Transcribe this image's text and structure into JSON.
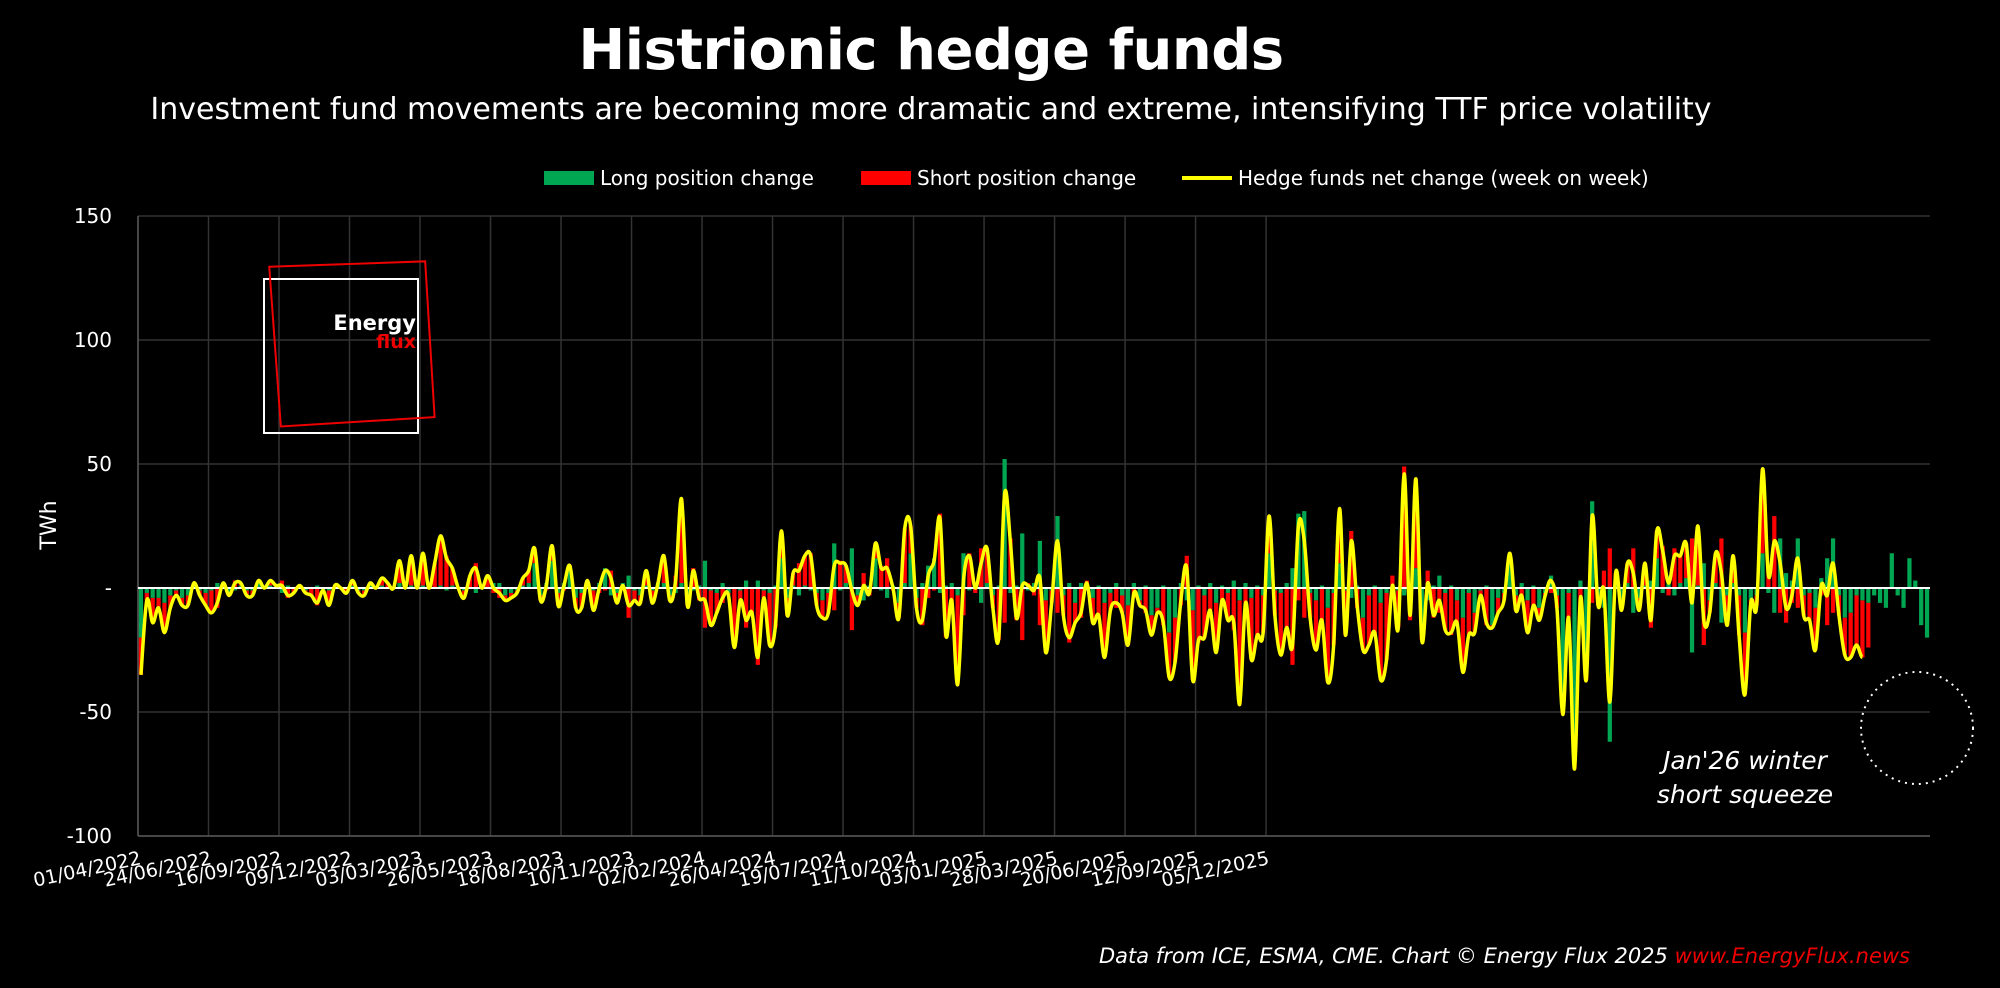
{
  "title": "Histrionic hedge funds",
  "subtitle": "Investment fund movements are becoming more dramatic and extreme, intensifying TTF price volatility",
  "footer": {
    "source": "Data from ICE, ESMA, CME. Chart © Energy Flux 2025 ",
    "url": "www.EnergyFlux.news"
  },
  "logo": {
    "text1": "Energy",
    "text2": "flux"
  },
  "colors": {
    "long": "#00a651",
    "short": "#ff0000",
    "net": "#ffff00",
    "background": "#000000",
    "grid": "#333333"
  },
  "chart_data": {
    "type": "bar",
    "title": "Histrionic hedge funds",
    "ylabel": "TWh",
    "ylim": [
      -100,
      150
    ],
    "yticks": [
      150,
      100,
      50,
      0,
      -50,
      -100
    ],
    "ytick_labels": [
      "150",
      "100",
      "50",
      "-",
      "-50",
      "-100"
    ],
    "xtick_labels": [
      "01/04/2022",
      "24/06/2022",
      "16/09/2022",
      "09/12/2022",
      "03/03/2023",
      "26/05/2023",
      "18/08/2023",
      "10/11/2023",
      "02/02/2024",
      "26/04/2024",
      "19/07/2024",
      "11/10/2024",
      "03/01/2025",
      "28/03/2025",
      "20/06/2025",
      "12/09/2025",
      "05/12/2025"
    ],
    "weeks_per_tick": 12,
    "grid": true,
    "legend": [
      "Long position change",
      "Short position change",
      "Hedge funds net change (week on week)"
    ],
    "legend_position": "top",
    "annotation": [
      "Jan'26 winter",
      "short squeeze"
    ],
    "series": [
      {
        "name": "Long position change",
        "values": [
          -20,
          -2,
          -4,
          -4,
          -6,
          -3,
          -1,
          -4,
          -3,
          1,
          -1,
          -2,
          -1,
          2,
          0,
          -2,
          -1,
          1,
          -1,
          -1,
          2,
          0,
          1,
          0,
          -2,
          1,
          0,
          0,
          -1,
          0,
          1,
          -1,
          -1,
          0,
          0,
          0,
          1,
          -1,
          -1,
          1,
          0,
          1,
          0,
          0,
          2,
          0,
          1,
          0,
          1,
          0,
          0,
          1,
          -1,
          1,
          0,
          -1,
          0,
          -2,
          0,
          0,
          2,
          2,
          -3,
          -2,
          -1,
          1,
          2,
          10,
          -3,
          2,
          11,
          -2,
          2,
          8,
          -4,
          -2,
          2,
          -1,
          2,
          8,
          -3,
          -2,
          2,
          5,
          -1,
          -3,
          1,
          -1,
          2,
          2,
          -3,
          -2,
          2,
          -6,
          -1,
          1,
          11,
          -1,
          -2,
          2,
          -2,
          0,
          -1,
          3,
          0,
          3,
          -1,
          -2,
          1,
          12,
          -4,
          1,
          -3,
          1,
          -1,
          -2,
          -5,
          -2,
          18,
          -1,
          2,
          16,
          -3,
          -5,
          1,
          12,
          -1,
          -4,
          1,
          -6,
          2,
          14,
          -4,
          2,
          9,
          12,
          -2,
          1,
          2,
          -3,
          14,
          -1,
          2,
          -6,
          2,
          -3,
          1,
          52,
          -2,
          1,
          22,
          -1,
          2,
          19,
          -5,
          -1,
          29,
          -3,
          2,
          -6,
          2,
          -1,
          -4,
          1,
          -6,
          -2,
          2,
          -3,
          -7,
          2,
          -5,
          1,
          -11,
          -8,
          1,
          -18,
          -12,
          2,
          -5,
          -9,
          1,
          -3,
          2,
          -6,
          1,
          -2,
          3,
          -5,
          2,
          -4,
          1,
          -3,
          14,
          -1,
          -2,
          2,
          8,
          30,
          31,
          -2,
          -5,
          1,
          -8,
          -2,
          10,
          -1,
          -4,
          1,
          -12,
          -3,
          1,
          -6,
          -2,
          -4,
          -1,
          -3,
          2,
          8,
          -15,
          -5,
          1,
          5,
          -2,
          1,
          -5,
          -12,
          -2,
          -10,
          -1,
          1,
          -15,
          -4,
          -2,
          12,
          -3,
          2,
          -5,
          1,
          -8,
          -2,
          5,
          -3,
          -45,
          -2,
          -70,
          3,
          -35,
          35,
          -4,
          -8,
          -62,
          2,
          -5,
          2,
          -10,
          -4,
          1,
          3,
          12,
          -2,
          5,
          -3,
          2,
          4,
          -26,
          1,
          10,
          -5,
          2,
          -14,
          -3,
          2,
          -3,
          -18,
          -5,
          -3,
          14,
          -2,
          -10,
          20,
          6,
          3,
          20,
          -3,
          -2,
          -8,
          4,
          12,
          20,
          -3,
          -12,
          -10,
          -3,
          -5,
          -6,
          -3,
          -6,
          -8,
          14,
          -3,
          -8,
          12,
          3,
          -15,
          -20
        ],
        "short_values": [
          -15,
          -3,
          -10,
          -4,
          -12,
          -5,
          -2,
          -3,
          -4,
          1,
          -2,
          -5,
          -9,
          -8,
          2,
          -1,
          3,
          1,
          -2,
          -2,
          1,
          0,
          2,
          1,
          3,
          -4,
          -2,
          1,
          -1,
          -3,
          -7,
          0,
          -6,
          1,
          0,
          -2,
          2,
          -1,
          -2,
          1,
          0,
          3,
          2,
          0,
          9,
          0,
          12,
          0,
          13,
          0,
          10,
          20,
          13,
          7,
          0,
          -3,
          5,
          10,
          0,
          5,
          -2,
          -4,
          -2,
          -2,
          -1,
          3,
          5,
          6,
          -2,
          -1,
          6,
          -5,
          -1,
          1,
          -4,
          -6,
          1,
          -8,
          -2,
          -1,
          7,
          -4,
          -1,
          -12,
          -4,
          -3,
          6,
          -5,
          0,
          11,
          -2,
          5,
          34,
          -1,
          8,
          -5,
          -16,
          -14,
          -8,
          -6,
          -1,
          -24,
          -4,
          -16,
          -10,
          -31,
          -3,
          -21,
          -16,
          11,
          -7,
          5,
          10,
          12,
          14,
          -5,
          -7,
          -8,
          -9,
          11,
          7,
          -17,
          -4,
          6,
          -3,
          6,
          9,
          12,
          -1,
          -6,
          22,
          11,
          -4,
          -15,
          -4,
          -1,
          30,
          -20,
          -7,
          -36,
          -11,
          14,
          -2,
          16,
          14,
          -5,
          -21,
          -14,
          20,
          -13,
          -21,
          2,
          -3,
          -15,
          -21,
          -5,
          -10,
          -8,
          -22,
          -8,
          -12,
          3,
          -10,
          -12,
          -22,
          -7,
          -8,
          -7,
          -16,
          -4,
          -2,
          -10,
          -8,
          -2,
          -15,
          -18,
          -18,
          -7,
          13,
          -28,
          -22,
          -17,
          -11,
          -20,
          -6,
          -11,
          -17,
          -42,
          -8,
          -25,
          -20,
          -15,
          15,
          -10,
          -25,
          -18,
          -31,
          -5,
          -12,
          -10,
          -20,
          -14,
          -30,
          -21,
          22,
          -18,
          23,
          -8,
          -13,
          -20,
          -19,
          -31,
          -27,
          5,
          -15,
          49,
          -13,
          36,
          -6,
          7,
          -12,
          -10,
          -15,
          -19,
          -9,
          -22,
          -17,
          -8,
          -2,
          -15,
          -1,
          -6,
          -3,
          2,
          -6,
          -5,
          -13,
          -8,
          -5,
          -1,
          -2,
          -5,
          -6,
          -10,
          -3,
          -7,
          -2,
          -6,
          -3,
          7,
          16,
          4,
          -4,
          8,
          16,
          -5,
          9,
          -16,
          11,
          17,
          -3,
          16,
          11,
          14,
          20,
          24,
          -23,
          -5,
          12,
          20,
          -12,
          11,
          -16,
          -25,
          -1,
          -4,
          34,
          7,
          29,
          -10,
          -14,
          -6,
          -8,
          -8,
          -11,
          -17,
          -3,
          -15,
          -10,
          -8,
          -15,
          -18,
          -20,
          -23,
          -18
        ]
      },
      {
        "name": "Hedge funds net change (week on week)"
      }
    ]
  }
}
